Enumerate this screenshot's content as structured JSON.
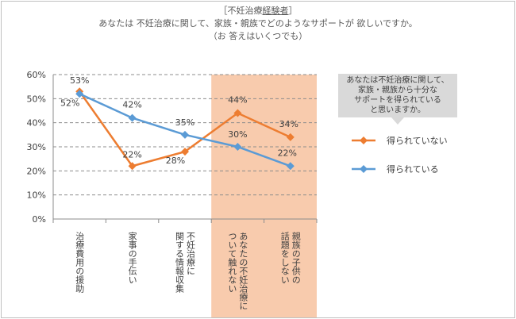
{
  "header": {
    "tag_open": "［",
    "tag_main": "不妊治療",
    "tag_emph": "経験者",
    "tag_close": "］",
    "question": "あなたは 不妊治療に関して、家族・親族でどのようなサポートが 欲しいですか。",
    "note": "（お 答えはいくつでも）"
  },
  "chart_data": {
    "type": "line",
    "categories": [
      "治療費用の援助",
      "家事の手伝い",
      "不妊治療に関する情報収集",
      "あなたの不妊治療について触れない",
      "親族の子供の話題をしない"
    ],
    "category_lines": [
      [
        "治療費用の援助"
      ],
      [
        "家事の手伝い"
      ],
      [
        "不妊治療に",
        "関する情報収集"
      ],
      [
        "あなたの不妊治療に",
        "ついて触れない"
      ],
      [
        "親族の子供の",
        "話題をしない"
      ]
    ],
    "series": [
      {
        "name": "得られていない",
        "values": [
          53,
          22,
          28,
          44,
          34
        ],
        "color": "#ed7d31"
      },
      {
        "name": "得られている",
        "values": [
          52,
          42,
          35,
          30,
          22
        ],
        "color": "#5b9bd5"
      }
    ],
    "ylim": [
      0,
      60
    ],
    "yticks": [
      "0%",
      "10%",
      "20%",
      "30%",
      "40%",
      "50%",
      "60%"
    ],
    "grid": true,
    "highlight": {
      "categories": [
        3,
        4
      ],
      "color": "#f8cbad"
    },
    "legend": {
      "title": "あなたは不妊治療に関して、家族・親族から十分なサポートを得られていると思いますか。",
      "title_lines": [
        "あなたは不妊治療に関して、",
        "家族・親族から十分な",
        "サポートを得られている",
        "と思いますか。"
      ],
      "placement": "right"
    },
    "data_labels": true
  }
}
